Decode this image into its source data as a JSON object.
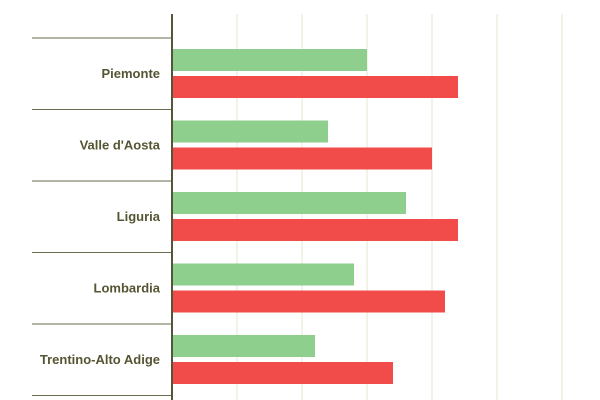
{
  "chart_data": {
    "type": "bar",
    "orientation": "horizontal",
    "categories": [
      "Piemonte",
      "Valle d'Aosta",
      "Liguria",
      "Lombardia",
      "Trentino-Alto Adige"
    ],
    "series": [
      {
        "color": "#8ecf8e",
        "values": [
          3.0,
          2.4,
          3.6,
          2.8,
          2.2
        ]
      },
      {
        "color": "#f24c4a",
        "values": [
          4.4,
          4.0,
          4.4,
          4.2,
          3.4
        ]
      }
    ],
    "xlim": [
      0,
      6
    ],
    "grid": true,
    "tick_labels_visible": false,
    "legend": "none"
  }
}
